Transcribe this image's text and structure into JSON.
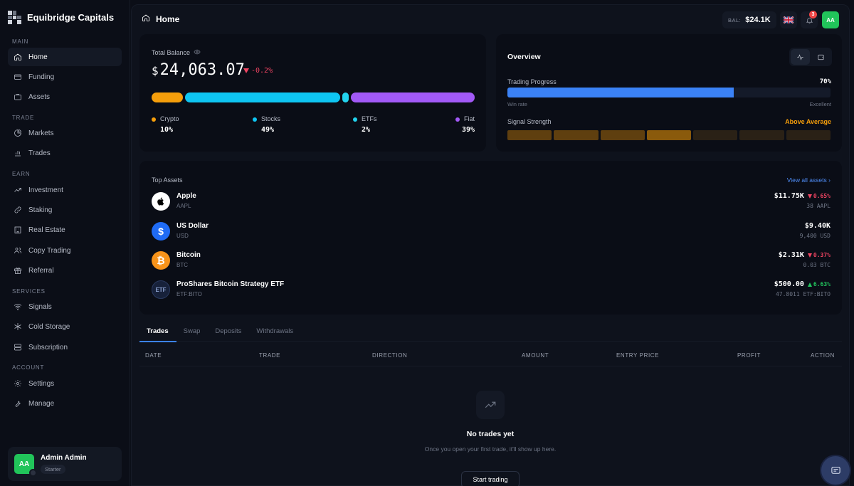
{
  "brand": {
    "name": "Equibridge Capitals"
  },
  "sidebar": {
    "sections": [
      {
        "label": "MAIN",
        "items": [
          {
            "label": "Home",
            "icon": "home-icon",
            "active": true
          },
          {
            "label": "Funding",
            "icon": "wallet-icon"
          },
          {
            "label": "Assets",
            "icon": "briefcase-icon"
          }
        ]
      },
      {
        "label": "TRADE",
        "items": [
          {
            "label": "Markets",
            "icon": "pie-chart-icon"
          },
          {
            "label": "Trades",
            "icon": "bar-chart-icon"
          }
        ]
      },
      {
        "label": "EARN",
        "items": [
          {
            "label": "Investment",
            "icon": "trending-up-icon"
          },
          {
            "label": "Staking",
            "icon": "link-icon"
          },
          {
            "label": "Real Estate",
            "icon": "building-icon"
          },
          {
            "label": "Copy Trading",
            "icon": "users-icon"
          },
          {
            "label": "Referral",
            "icon": "gift-icon"
          }
        ]
      },
      {
        "label": "SERVICES",
        "items": [
          {
            "label": "Signals",
            "icon": "wifi-icon"
          },
          {
            "label": "Cold Storage",
            "icon": "snowflake-icon"
          },
          {
            "label": "Subscription",
            "icon": "layers-icon"
          }
        ]
      },
      {
        "label": "ACCOUNT",
        "items": [
          {
            "label": "Settings",
            "icon": "gear-icon"
          },
          {
            "label": "Manage",
            "icon": "wrench-icon"
          }
        ]
      }
    ],
    "user": {
      "initials": "AA",
      "name": "Admin Admin",
      "plan": "Starter"
    }
  },
  "header": {
    "title": "Home",
    "balance_label": "BAL:",
    "balance_value": "$24.1K",
    "notification_count": "3",
    "avatar_initials": "AA"
  },
  "balance": {
    "label": "Total Balance",
    "currency": "$",
    "amount": "24,063.07",
    "change": "-0.2%",
    "allocation": [
      {
        "name": "Crypto",
        "pct": "10%",
        "value": 10,
        "color": "#f59e0b"
      },
      {
        "name": "Stocks",
        "pct": "49%",
        "value": 49,
        "color": "#0ec5f2"
      },
      {
        "name": "ETFs",
        "pct": "2%",
        "value": 2,
        "color": "#22d3ee"
      },
      {
        "name": "Fiat",
        "pct": "39%",
        "value": 39,
        "color": "#a259f7"
      }
    ]
  },
  "overview": {
    "title": "Overview",
    "trading_progress_label": "Trading Progress",
    "trading_progress_value": "70%",
    "trading_progress": 70,
    "win_rate_label": "Win rate",
    "excellent_label": "Excellent",
    "signal_label": "Signal Strength",
    "signal_value": "Above Average",
    "signal_level": 4,
    "signal_total": 7,
    "accent": "#f59e0b",
    "progress_color": "#3b82f6"
  },
  "top_assets": {
    "title": "Top Assets",
    "view_all": "View all assets",
    "items": [
      {
        "name": "Apple",
        "symbol": "AAPL",
        "value": "$11.75K",
        "change": "0.65%",
        "direction": "down",
        "qty": "38 AAPL",
        "logo": "apple-icon"
      },
      {
        "name": "US Dollar",
        "symbol": "USD",
        "value": "$9.40K",
        "change": "",
        "direction": "",
        "qty": "9,400 USD",
        "logo": "dollar-icon"
      },
      {
        "name": "Bitcoin",
        "symbol": "BTC",
        "value": "$2.31K",
        "change": "0.37%",
        "direction": "down",
        "qty": "0.03 BTC",
        "logo": "bitcoin-icon"
      },
      {
        "name": "ProShares Bitcoin Strategy ETF",
        "symbol": "ETF:BITO",
        "value": "$500.00",
        "change": "6.63%",
        "direction": "up",
        "qty": "47.8011 ETF:BITO",
        "logo": "etf-icon",
        "logo_text": "ETF"
      }
    ]
  },
  "tabs": [
    "Trades",
    "Swap",
    "Deposits",
    "Withdrawals"
  ],
  "table": {
    "columns": [
      "DATE",
      "TRADE",
      "DIRECTION",
      "AMOUNT",
      "ENTRY PRICE",
      "PROFIT",
      "ACTION"
    ]
  },
  "empty_state": {
    "title": "No trades yet",
    "subtitle": "Once you open your first trade, it'll show up here.",
    "button": "Start trading"
  }
}
